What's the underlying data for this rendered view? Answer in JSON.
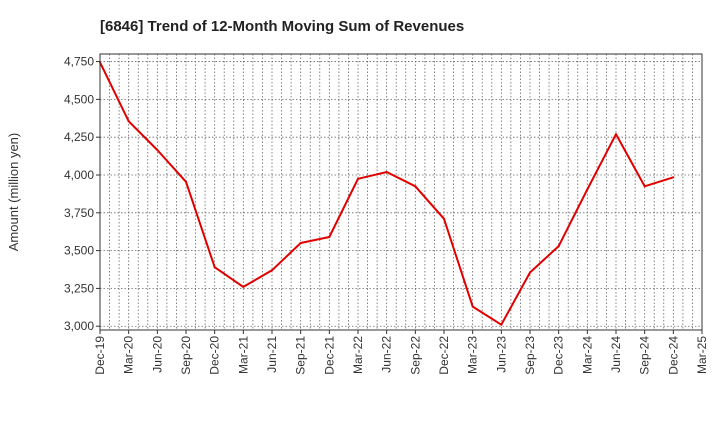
{
  "chart_data": {
    "type": "line",
    "title": "[6846]  Trend of 12-Month Moving Sum of Revenues",
    "xlabel": "",
    "ylabel": "Amount (million yen)",
    "ylim": [
      2975,
      4800
    ],
    "yticks": [
      3000,
      3250,
      3500,
      3750,
      4000,
      4250,
      4500,
      4750
    ],
    "ytick_labels": [
      "3,000",
      "3,250",
      "3,500",
      "3,750",
      "4,000",
      "4,250",
      "4,500",
      "4,750"
    ],
    "categories": [
      "Dec-19",
      "Mar-20",
      "Jun-20",
      "Sep-20",
      "Dec-20",
      "Mar-21",
      "Jun-21",
      "Sep-21",
      "Dec-21",
      "Mar-22",
      "Jun-22",
      "Sep-22",
      "Dec-22",
      "Mar-23",
      "Jun-23",
      "Sep-23",
      "Dec-23",
      "Mar-24",
      "Jun-24",
      "Sep-24",
      "Dec-24",
      "Mar-25"
    ],
    "series": [
      {
        "color": "#e00000",
        "values": [
          4745,
          4355,
          4165,
          3955,
          3390,
          3260,
          3370,
          3550,
          3590,
          3975,
          4020,
          3925,
          3710,
          3130,
          3010,
          3355,
          3530,
          3905,
          4270,
          3925,
          3985,
          null
        ]
      }
    ],
    "grid": true,
    "legend": "none"
  }
}
